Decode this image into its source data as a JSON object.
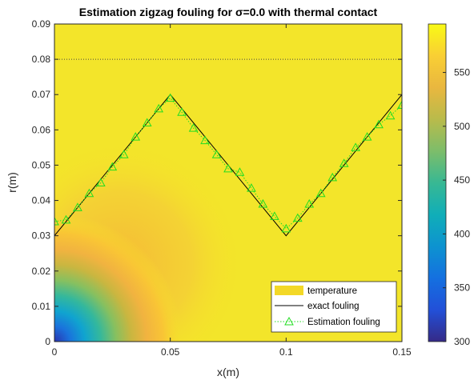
{
  "chart_data": {
    "type": "heatmap",
    "title": "Estimation zigzag fouling for σ=0.0 with thermal contact",
    "xlabel": "x(m)",
    "ylabel": "r(m)",
    "xlim": [
      0,
      0.15
    ],
    "ylim": [
      0,
      0.09
    ],
    "x_ticks": [
      "0",
      "0.05",
      "0.1",
      "0.15"
    ],
    "y_ticks": [
      "0",
      "0.01",
      "0.02",
      "0.03",
      "0.04",
      "0.05",
      "0.06",
      "0.07",
      "0.08",
      "0.09"
    ],
    "colorbar": {
      "min": 300,
      "max": 595,
      "ticks": [
        "300",
        "350",
        "400",
        "450",
        "500",
        "550"
      ],
      "colormap": "parula"
    },
    "horizontal_reference_line": {
      "y": 0.08,
      "style": "dotted"
    },
    "legend": {
      "position": "bottom-right",
      "entries": [
        "temperature",
        "exact fouling",
        "Estimation fouling"
      ]
    },
    "series": [
      {
        "name": "exact fouling",
        "style": "solid",
        "color": "#000000",
        "x": [
          0,
          0.05,
          0.1,
          0.15
        ],
        "y": [
          0.03,
          0.07,
          0.03,
          0.07
        ]
      },
      {
        "name": "Estimation fouling",
        "style": "dotted-triangle",
        "color": "#22dd22",
        "x": [
          0,
          0.005,
          0.01,
          0.015,
          0.02,
          0.025,
          0.03,
          0.035,
          0.04,
          0.045,
          0.05,
          0.055,
          0.06,
          0.065,
          0.07,
          0.075,
          0.08,
          0.085,
          0.09,
          0.095,
          0.1,
          0.105,
          0.11,
          0.115,
          0.12,
          0.125,
          0.13,
          0.135,
          0.14,
          0.145,
          0.15
        ],
        "y": [
          0.034,
          0.0345,
          0.038,
          0.042,
          0.045,
          0.0495,
          0.053,
          0.058,
          0.062,
          0.066,
          0.069,
          0.065,
          0.0605,
          0.057,
          0.053,
          0.049,
          0.048,
          0.0435,
          0.039,
          0.0355,
          0.032,
          0.035,
          0.039,
          0.042,
          0.0465,
          0.0505,
          0.055,
          0.058,
          0.0615,
          0.064,
          0.067
        ]
      }
    ]
  }
}
